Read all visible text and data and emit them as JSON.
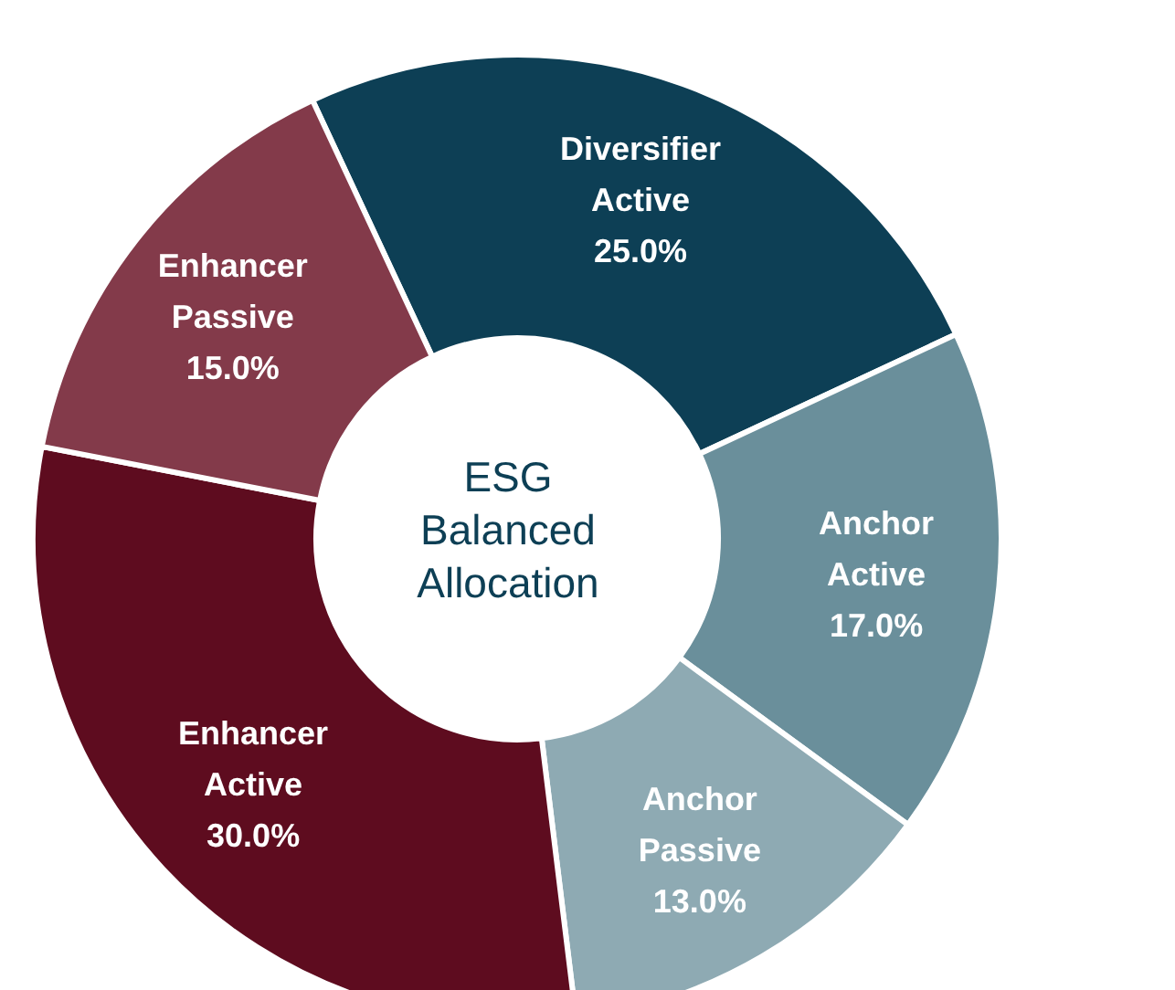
{
  "chart_data": {
    "type": "donut",
    "title": "ESG Balanced Allocation",
    "categories": [
      "Diversifier Active",
      "Anchor Active",
      "Anchor Passive",
      "Enhancer Active",
      "Enhancer Passive"
    ],
    "values": [
      25.0,
      17.0,
      13.0,
      30.0,
      15.0
    ],
    "value_labels": [
      "25.0%",
      "17.0%",
      "13.0%",
      "30.0%",
      "15.0%"
    ],
    "colors": [
      "#0d3f55",
      "#6a8f9b",
      "#8eaab3",
      "#5e0c1f",
      "#833a4a"
    ],
    "legend": false
  }
}
